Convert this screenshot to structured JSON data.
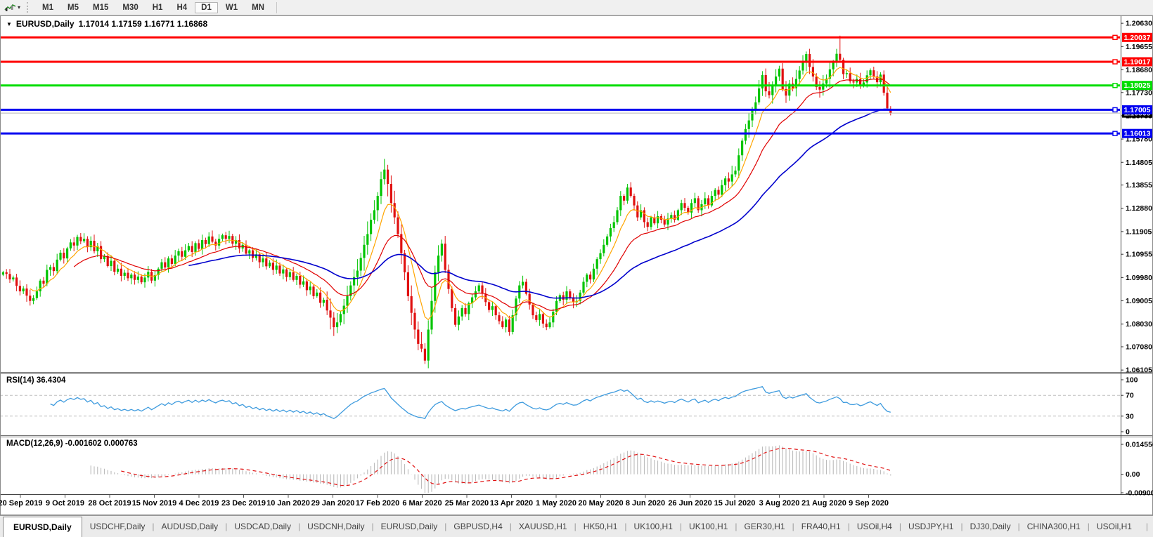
{
  "toolbar": {
    "timeframes": [
      "M1",
      "M5",
      "M15",
      "M30",
      "H1",
      "H4",
      "D1",
      "W1",
      "MN"
    ],
    "active": "D1",
    "dropdown_caret": "▾"
  },
  "panes": {
    "collapse_icon": "▼",
    "symbol_title": "EURUSD,Daily",
    "ohlc_values": "1.17014 1.17159 1.16771 1.16868",
    "rsi_label": "RSI(14) 36.4304",
    "macd_label": "MACD(12,26,9) -0.001602 0.000763"
  },
  "chart_data": {
    "type": "candlestick",
    "symbol": "EURUSD",
    "timeframe": "Daily",
    "ohlc": {
      "open": "1.17014",
      "high": "1.17159",
      "low": "1.16771",
      "close": "1.16868"
    },
    "x_labels": [
      "20 Sep 2019",
      "9 Oct 2019",
      "28 Oct 2019",
      "15 Nov 2019",
      "4 Dec 2019",
      "23 Dec 2019",
      "10 Jan 2020",
      "29 Jan 2020",
      "17 Feb 2020",
      "6 Mar 2020",
      "25 Mar 2020",
      "13 Apr 2020",
      "1 May 2020",
      "20 May 2020",
      "8 Jun 2020",
      "26 Jun 2020",
      "15 Jul 2020",
      "3 Aug 2020",
      "21 Aug 2020",
      "9 Sep 2020"
    ],
    "y_ticks": [
      "1.20630",
      "1.19655",
      "1.18680",
      "1.17730",
      "1.16755",
      "1.15780",
      "1.14805",
      "1.13855",
      "1.12880",
      "1.11905",
      "1.10955",
      "1.09980",
      "1.09005",
      "1.08030",
      "1.07080",
      "1.06105"
    ],
    "y_range": [
      1.0608,
      1.2084
    ],
    "closes": [
      1.102,
      1.1013,
      1.099,
      1.0998,
      1.0963,
      1.094,
      1.0952,
      1.0922,
      1.09,
      1.0912,
      1.094,
      1.0985,
      1.0972,
      1.103,
      1.1042,
      1.1025,
      1.1073,
      1.1102,
      1.1078,
      1.112,
      1.1145,
      1.1132,
      1.1168,
      1.115,
      1.116,
      1.1125,
      1.1152,
      1.1108,
      1.113,
      1.1075,
      1.1088,
      1.1046,
      1.1068,
      1.1022,
      1.1035,
      1.1005,
      1.1018,
      1.0995,
      1.101,
      1.0988,
      1.1002,
      1.0978,
      1.0998,
      1.1022,
      1.0985,
      1.1008,
      1.1035,
      1.1062,
      1.104,
      1.1078,
      1.1055,
      1.109,
      1.1108,
      1.1085,
      1.1112,
      1.113,
      1.1105,
      1.1142,
      1.1118,
      1.1155,
      1.1138,
      1.117,
      1.1148,
      1.1132,
      1.116,
      1.1175,
      1.116,
      1.1172,
      1.114,
      1.1155,
      1.112,
      1.1135,
      1.1098,
      1.1112,
      1.108,
      1.1095,
      1.1062,
      1.1078,
      1.1045,
      1.106,
      1.103,
      1.1048,
      1.1015,
      1.1032,
      1.1,
      1.102,
      1.0988,
      1.1005,
      1.0968,
      1.0982,
      1.0945,
      1.096,
      1.092,
      1.0935,
      1.0892,
      1.0905,
      1.086,
      1.083,
      1.079,
      1.081,
      1.0845,
      1.088,
      1.092,
      1.0965,
      1.1,
      1.1027,
      1.108,
      1.1135,
      1.118,
      1.124,
      1.128,
      1.134,
      1.141,
      1.145,
      1.139,
      1.131,
      1.125,
      1.118,
      1.11,
      1.102,
      1.092,
      1.085,
      1.078,
      1.072,
      1.07,
      1.065,
      1.078,
      1.09,
      1.102,
      1.109,
      1.114,
      1.103,
      1.095,
      1.087,
      1.08,
      1.0835,
      1.087,
      1.0845,
      1.089,
      1.0915,
      1.094,
      1.0965,
      1.093,
      1.0895,
      1.0862,
      1.0878,
      1.084,
      1.0815,
      1.079,
      1.0822,
      1.077,
      1.084,
      1.091,
      1.0965,
      1.098,
      1.093,
      1.0885,
      1.084,
      1.082,
      1.0845,
      1.0805,
      1.079,
      1.081,
      1.0855,
      1.09,
      1.0924,
      1.0905,
      1.094,
      1.0915,
      1.0895,
      1.09,
      1.0935,
      1.098,
      1.101,
      1.099,
      1.1035,
      1.1075,
      1.11,
      1.1135,
      1.117,
      1.1205,
      1.123,
      1.128,
      1.134,
      1.132,
      1.1375,
      1.134,
      1.13,
      1.125,
      1.128,
      1.123,
      1.121,
      1.125,
      1.1225,
      1.1255,
      1.124,
      1.122,
      1.1245,
      1.126,
      1.124,
      1.128,
      1.131,
      1.129,
      1.127,
      1.131,
      1.133,
      1.128,
      1.1305,
      1.133,
      1.13,
      1.134,
      1.1365,
      1.1345,
      1.1385,
      1.1413,
      1.14,
      1.143,
      1.1446,
      1.151,
      1.1571,
      1.162,
      1.1656,
      1.17,
      1.1732,
      1.179,
      1.1846,
      1.1778,
      1.1762,
      1.18,
      1.184,
      1.1873,
      1.1787,
      1.176,
      1.181,
      1.1791,
      1.183,
      1.1865,
      1.19,
      1.1934,
      1.188,
      1.184,
      1.1796,
      1.1785,
      1.181,
      1.1831,
      1.187,
      1.19,
      1.1935,
      1.191,
      1.185,
      1.1854,
      1.182,
      1.1815,
      1.183,
      1.1801,
      1.1815,
      1.1845,
      1.1866,
      1.184,
      1.1816,
      1.1848,
      1.1772,
      1.1707,
      1.16868
    ],
    "overrides": {
      "113": {
        "high": 1.1495
      },
      "125": {
        "low": 1.0636
      },
      "248": {
        "high": 1.2011
      },
      "263": {
        "open": 1.17014,
        "high": 1.17159,
        "low": 1.16771,
        "close": 1.16868
      }
    },
    "volatility_zones": [
      [
        96,
        131,
        2.1
      ],
      [
        215,
        248,
        1.5
      ]
    ],
    "up_color": "#00C400",
    "down_color": "#E01010",
    "moving_averages": [
      {
        "period": 8,
        "color": "#FFA500",
        "width": 1.2
      },
      {
        "period": 21,
        "color": "#E00000",
        "width": 1.2
      },
      {
        "period": 55,
        "color": "#0000CD",
        "width": 1.6
      }
    ],
    "h_lines": [
      {
        "price": 1.20037,
        "label": "1.20037",
        "color": "#FF0000"
      },
      {
        "price": 1.19017,
        "label": "1.19017",
        "color": "#FF0000"
      },
      {
        "price": 1.18025,
        "label": "1.18025",
        "color": "#00DD00"
      },
      {
        "price": 1.17005,
        "label": "1.17005",
        "color": "#0000F0"
      },
      {
        "price": 1.16013,
        "label": "1.16013",
        "color": "#0000F0"
      }
    ],
    "current_price": {
      "value": 1.16868,
      "label": "1.16868",
      "line_color": "#B8B8B8",
      "label_bg": "#000000"
    },
    "rsi": {
      "period": 14,
      "current": "36.4304",
      "color": "#3E9BDE",
      "levels": [
        70,
        30
      ],
      "ticks": [
        "100",
        "70",
        "30",
        "0"
      ],
      "range": [
        0,
        100
      ]
    },
    "macd": {
      "fast": 12,
      "slow": 26,
      "signal": 9,
      "main_current": "-0.001602",
      "signal_current": "0.000763",
      "hist_color": "#B4B4B4",
      "signal_color": "#E01010",
      "ticks": [
        "0.014556",
        "0.00",
        "-0.009001"
      ],
      "range": [
        -0.009001,
        0.014556
      ]
    }
  },
  "tab_bar": {
    "tabs": [
      "EURUSD,Daily",
      "USDCHF,Daily",
      "AUDUSD,Daily",
      "USDCAD,Daily",
      "USDCNH,Daily",
      "EURUSD,Daily",
      "GBPUSD,H4",
      "XAUUSD,H1",
      "HK50,H1",
      "UK100,H1",
      "UK100,H1",
      "GER30,H1",
      "FRA40,H1",
      "USOil,H4",
      "USDJPY,H1",
      "DJ30,Daily",
      "CHINA300,H1",
      "USOil,H1"
    ],
    "active_index": 0,
    "scroll_left_icon": "◂",
    "scroll_right_icon": "▸"
  }
}
